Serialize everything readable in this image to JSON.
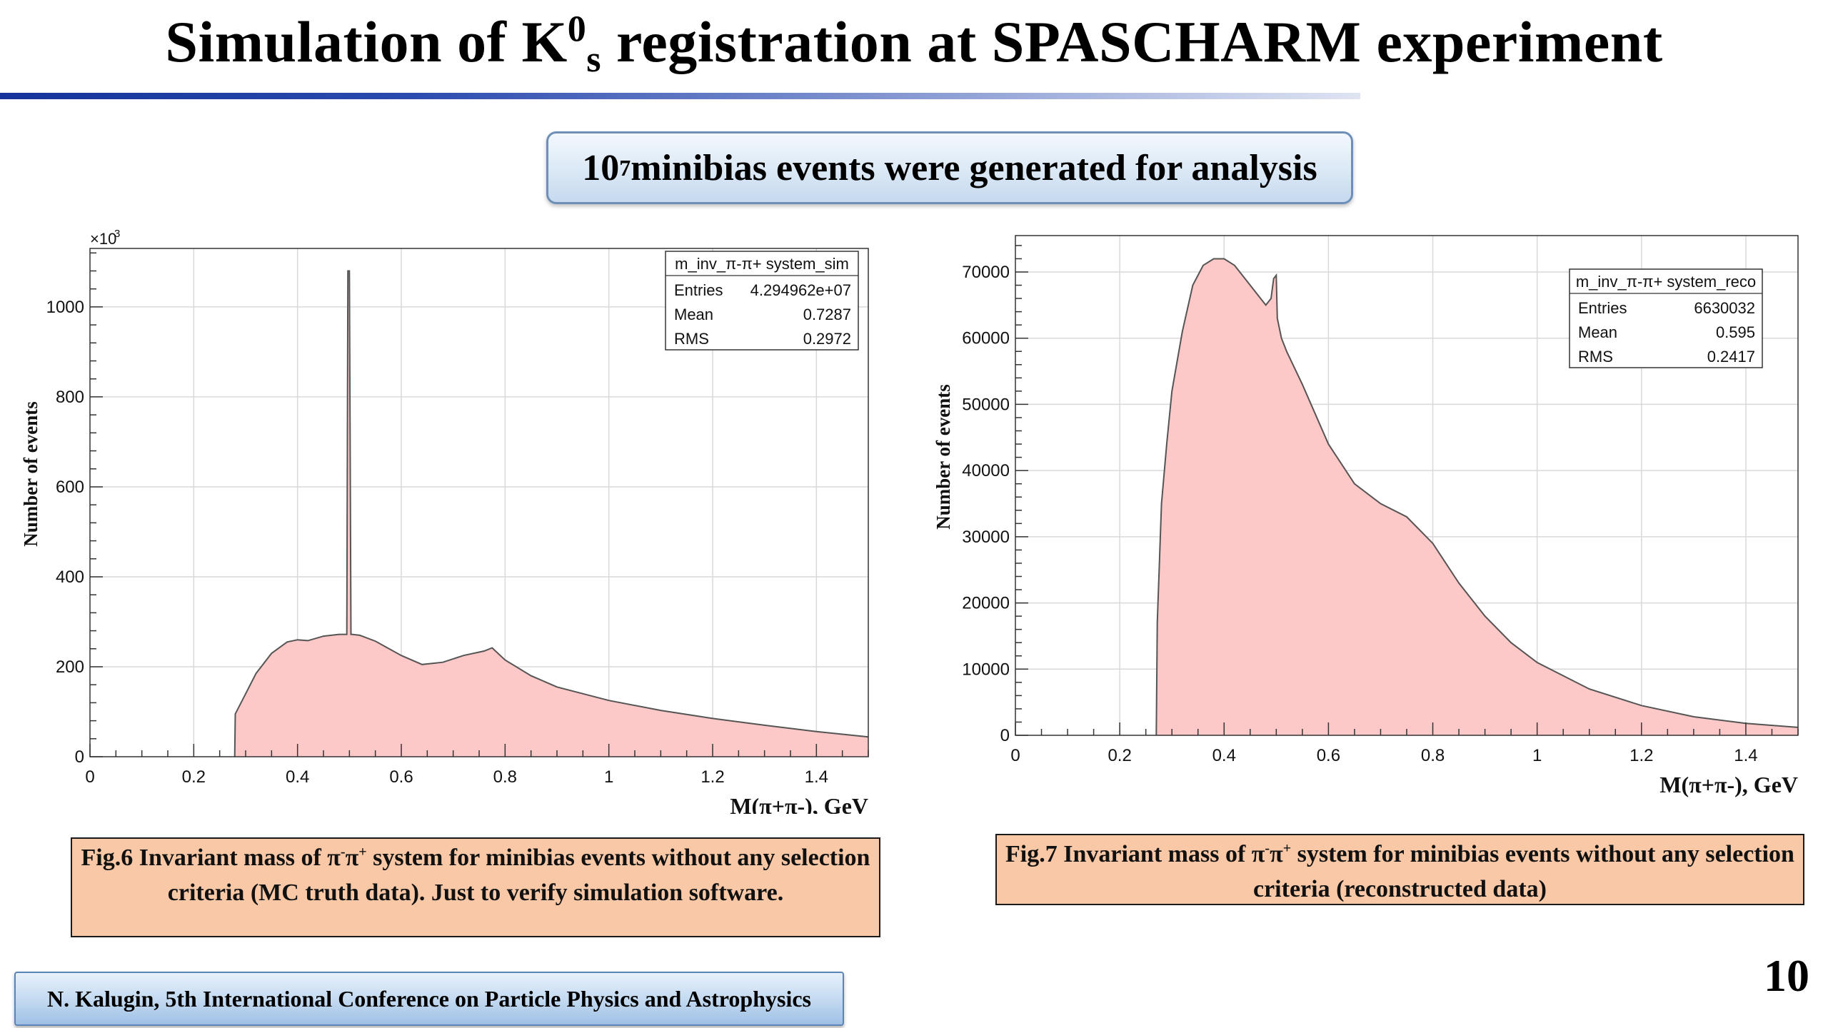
{
  "slide": {
    "title_pre": "Simulation of K",
    "title_sup": "0",
    "title_sub": "s",
    "title_post": " registration at SPASCHARM experiment",
    "banner_base": "10",
    "banner_exp": "7",
    "banner_text": " minibias events were generated for analysis",
    "caption_left_a": "Fig.6 Invariant mass of π",
    "caption_left_s1": "-",
    "caption_left_b": "π",
    "caption_left_s2": "+",
    "caption_left_c": " system for minibias events without any selection criteria (MC truth data). Just to verify simulation software.",
    "caption_right_a": "Fig.7 Invariant mass of π",
    "caption_right_s1": "-",
    "caption_right_b": "π",
    "caption_right_s2": "+",
    "caption_right_c": " system for minibias events without any selection criteria (reconstructed data)",
    "footer": "N. Kalugin, 5th International Conference on Particle Physics and Astrophysics",
    "page_number": "10"
  },
  "colors": {
    "fill": "#fdc8c8",
    "line": "#555555",
    "accent": "#15339a"
  },
  "chart_data": [
    {
      "type": "area",
      "ylabel": "Number of events",
      "xlabel": "M(π+π-), GeV",
      "y_multiplier_label": "×10",
      "y_multiplier_exp": "3",
      "xlim": [
        0,
        1.5
      ],
      "ylim": [
        0,
        1130
      ],
      "x_ticks": [
        0,
        0.2,
        0.4,
        0.6,
        0.8,
        1,
        1.2,
        1.4
      ],
      "x_tick_labels": [
        "0",
        "0.2",
        "0.4",
        "0.6",
        "0.8",
        "1",
        "1.2",
        "1.4"
      ],
      "y_ticks": [
        0,
        200,
        400,
        600,
        800,
        1000
      ],
      "y_tick_labels": [
        "0",
        "200",
        "400",
        "600",
        "800",
        "1000"
      ],
      "grid": true,
      "stats_box": {
        "title": "m_inv_π-π+ system_sim",
        "rows": [
          {
            "label": "Entries",
            "value": "4.294962e+07"
          },
          {
            "label": "Mean",
            "value": "0.7287"
          },
          {
            "label": "RMS",
            "value": "0.2972"
          }
        ]
      },
      "x": [
        0.279,
        0.28,
        0.3,
        0.32,
        0.35,
        0.38,
        0.4,
        0.42,
        0.45,
        0.48,
        0.495,
        0.497,
        0.5,
        0.503,
        0.505,
        0.52,
        0.55,
        0.6,
        0.64,
        0.68,
        0.72,
        0.76,
        0.775,
        0.8,
        0.85,
        0.9,
        1.0,
        1.1,
        1.2,
        1.3,
        1.4,
        1.5
      ],
      "y": [
        0,
        95,
        140,
        185,
        230,
        255,
        260,
        258,
        268,
        272,
        272,
        1080,
        1080,
        272,
        272,
        270,
        257,
        225,
        205,
        210,
        225,
        235,
        242,
        215,
        180,
        155,
        125,
        103,
        85,
        70,
        56,
        44
      ]
    },
    {
      "type": "area",
      "ylabel": "Number of events",
      "xlabel": "M(π+π-), GeV",
      "xlim": [
        0,
        1.5
      ],
      "ylim": [
        0,
        75500
      ],
      "x_ticks": [
        0,
        0.2,
        0.4,
        0.6,
        0.8,
        1,
        1.2,
        1.4
      ],
      "x_tick_labels": [
        "0",
        "0.2",
        "0.4",
        "0.6",
        "0.8",
        "1",
        "1.2",
        "1.4"
      ],
      "y_ticks": [
        0,
        10000,
        20000,
        30000,
        40000,
        50000,
        60000,
        70000
      ],
      "y_tick_labels": [
        "0",
        "10000",
        "20000",
        "30000",
        "40000",
        "50000",
        "60000",
        "70000"
      ],
      "grid": true,
      "stats_box": {
        "title": "m_inv_π-π+ system_reco",
        "rows": [
          {
            "label": "Entries",
            "value": "6630032"
          },
          {
            "label": "Mean",
            "value": "0.595"
          },
          {
            "label": "RMS",
            "value": "0.2417"
          }
        ]
      },
      "x": [
        0.27,
        0.272,
        0.28,
        0.29,
        0.3,
        0.32,
        0.34,
        0.36,
        0.38,
        0.4,
        0.42,
        0.45,
        0.47,
        0.48,
        0.49,
        0.495,
        0.5,
        0.502,
        0.51,
        0.52,
        0.55,
        0.6,
        0.65,
        0.7,
        0.75,
        0.8,
        0.85,
        0.9,
        0.95,
        1.0,
        1.1,
        1.2,
        1.3,
        1.4,
        1.5
      ],
      "y": [
        0,
        17000,
        35000,
        44000,
        52000,
        61000,
        68000,
        71000,
        72000,
        72000,
        71000,
        68000,
        66000,
        65000,
        66000,
        69000,
        69500,
        63000,
        60000,
        58000,
        53000,
        44000,
        38000,
        35000,
        33000,
        29000,
        23000,
        18000,
        14000,
        11000,
        7000,
        4500,
        2800,
        1800,
        1200
      ]
    }
  ]
}
